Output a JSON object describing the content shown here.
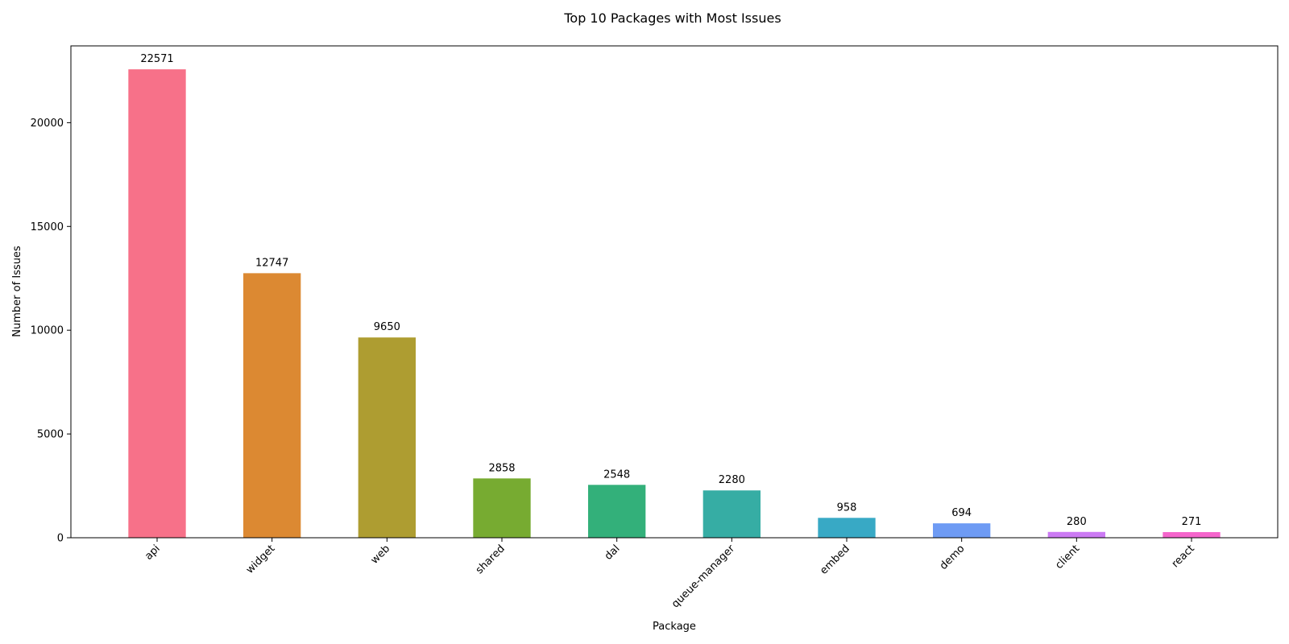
{
  "chart_data": {
    "type": "bar",
    "title": "Top 10 Packages with Most Issues",
    "xlabel": "Package",
    "ylabel": "Number of Issues",
    "categories": [
      "api",
      "widget",
      "web",
      "shared",
      "dal",
      "queue-manager",
      "embed",
      "demo",
      "client",
      "react"
    ],
    "values": [
      22571,
      12747,
      9650,
      2858,
      2548,
      2280,
      958,
      694,
      280,
      271
    ],
    "colors": [
      "#f77189",
      "#dc8932",
      "#ae9d31",
      "#77ab31",
      "#33b07a",
      "#36ada4",
      "#38a9c5",
      "#6e9bf4",
      "#cc7af4",
      "#f565cc"
    ],
    "ylim": [
      0,
      23700
    ],
    "yticks": [
      0,
      5000,
      10000,
      15000,
      20000
    ],
    "grid": false,
    "legend": "none"
  }
}
